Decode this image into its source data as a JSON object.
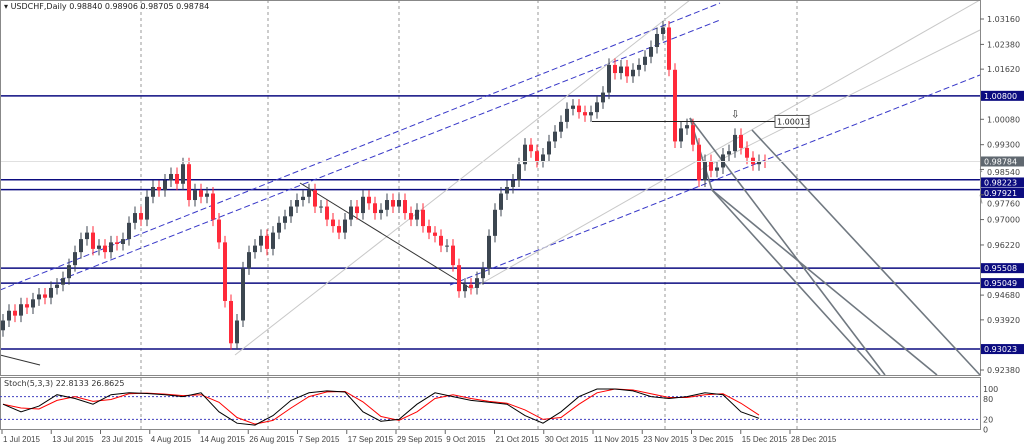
{
  "header": {
    "symbol": "USDCHF,Daily",
    "ohlc": "0.98840 0.98906 0.98705 0.98784"
  },
  "stoch_header": "Stoch(5,3,3) 22.8133 26.8625",
  "colors": {
    "bull": "#3c4650",
    "bear": "#ff2a3a",
    "level": "#0c0c80",
    "channel": "#3838c8",
    "fork": "#707880",
    "stochK": "#000000",
    "stochD": "#ff0000"
  },
  "chart_data": {
    "type": "candlestick",
    "first_open": 0.936,
    "closes": [
      0.939,
      0.942,
      0.9405,
      0.944,
      0.943,
      0.9455,
      0.947,
      0.946,
      0.949,
      0.95,
      0.952,
      0.956,
      0.96,
      0.964,
      0.966,
      0.961,
      0.962,
      0.96,
      0.963,
      0.9625,
      0.964,
      0.969,
      0.972,
      0.97,
      0.977,
      0.98,
      0.979,
      0.982,
      0.984,
      0.981,
      0.987,
      0.976,
      0.979,
      0.977,
      0.978,
      0.97,
      0.963,
      0.945,
      0.932,
      0.939,
      0.955,
      0.96,
      0.962,
      0.965,
      0.961,
      0.966,
      0.969,
      0.971,
      0.974,
      0.976,
      0.977,
      0.979,
      0.974,
      0.974,
      0.97,
      0.968,
      0.966,
      0.97,
      0.974,
      0.972,
      0.977,
      0.975,
      0.972,
      0.973,
      0.976,
      0.974,
      0.976,
      0.972,
      0.97,
      0.973,
      0.968,
      0.966,
      0.965,
      0.962,
      0.962,
      0.956,
      0.948,
      0.95,
      0.949,
      0.952,
      0.955,
      0.965,
      0.973,
      0.978,
      0.98,
      0.982,
      0.987,
      0.993,
      0.991,
      0.988,
      0.99,
      0.994,
      0.997,
      1.0,
      1.004,
      1.005,
      1.003,
      1.002,
      1.003,
      1.006,
      1.009,
      1.0175,
      1.015,
      1.017,
      1.014,
      1.016,
      1.0175,
      1.02,
      1.023,
      1.027,
      1.029,
      1.016,
      0.994,
      0.998,
      0.999,
      0.993,
      0.982,
      0.988,
      0.985,
      0.986,
      0.99,
      0.991,
      0.996,
      0.992,
      0.989,
      0.987,
      0.988,
      0.98784
    ],
    "ylim": [
      0.9225,
      1.0375
    ],
    "y_ticks": [
      "1.03160",
      "1.02380",
      "1.01620",
      "1.00080",
      "0.99300",
      "0.98540",
      "0.97760",
      "0.97000",
      "0.96220",
      "0.94680",
      "0.93920",
      "0.92380"
    ],
    "x_ticks": [
      "1 Jul 2015",
      "13 Jul 2015",
      "23 Jul 2015",
      "4 Aug 2015",
      "14 Aug 2015",
      "26 Aug 2015",
      "7 Sep 2015",
      "17 Sep 2015",
      "29 Sep 2015",
      "9 Oct 2015",
      "21 Oct 2015",
      "30 Oct 2015",
      "11 Nov 2015",
      "23 Nov 2015",
      "3 Dec 2015",
      "15 Dec 2015",
      "28 Dec 2015"
    ],
    "levels": [
      "1.00800",
      "0.98223",
      "0.97921",
      "0.95508",
      "0.95049",
      "0.93023"
    ],
    "current_price": "0.98784",
    "annotation": {
      "label": "1.00013",
      "value": 1.00013
    },
    "stoch": {
      "k_every_3_bars": [
        60,
        40,
        55,
        85,
        75,
        60,
        85,
        90,
        88,
        85,
        80,
        90,
        40,
        10,
        5,
        30,
        70,
        90,
        95,
        92,
        40,
        15,
        20,
        60,
        90,
        80,
        70,
        65,
        60,
        30,
        10,
        40,
        80,
        100,
        100,
        95,
        80,
        75,
        80,
        90,
        85,
        40,
        22.8
      ],
      "levels": [
        80,
        20
      ],
      "axis_labels": [
        "100",
        "80",
        "20",
        "0"
      ]
    }
  }
}
